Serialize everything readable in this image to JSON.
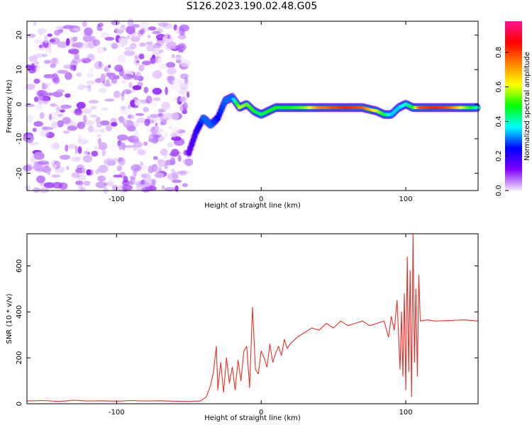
{
  "title": "S126.2023.190.02.48.G05",
  "chart_data": [
    {
      "type": "heatmap",
      "xlabel": "Height of straight line (km)",
      "ylabel": "Frequency (Hz)",
      "xlim": [
        -162,
        150
      ],
      "ylim": [
        -25,
        24
      ],
      "x_ticks": [
        -100,
        0,
        100
      ],
      "y_ticks": [
        20,
        10,
        0,
        -10,
        -20
      ],
      "colorbar": {
        "label": "Normalized spectral amplitude",
        "ticks": [
          "0.0",
          "0.2",
          "0.4",
          "0.6",
          "0.8"
        ],
        "colors": [
          "#f3e6ff",
          "#8000ff",
          "#0000ff",
          "#00ffff",
          "#00ff00",
          "#ffff00",
          "#ff8000",
          "#ff0000",
          "#ff1493"
        ]
      },
      "noise_region": {
        "x_range": [
          -162,
          -50
        ],
        "amplitude": [
          0.0,
          0.2
        ]
      },
      "ridge": {
        "x": [
          -50,
          -45,
          -40,
          -35,
          -30,
          -25,
          -20,
          -15,
          -10,
          -5,
          0,
          5,
          10,
          20,
          30,
          40,
          50,
          60,
          70,
          80,
          85,
          90,
          95,
          100,
          105,
          110,
          120,
          130,
          140,
          150
        ],
        "frequency": [
          -14,
          -8,
          -4,
          -6,
          -4,
          1,
          2,
          -1,
          0,
          -2,
          -3,
          -2,
          -1,
          -1,
          -1,
          -1,
          -1,
          -1,
          -1,
          -2,
          -3,
          -3,
          -1,
          0,
          -1,
          -1,
          -1,
          -1,
          -1,
          -1
        ],
        "amplitude": [
          0.15,
          0.2,
          0.3,
          0.3,
          0.25,
          0.3,
          0.3,
          0.6,
          0.55,
          0.5,
          0.45,
          0.5,
          0.5,
          0.5,
          0.55,
          0.75,
          0.8,
          0.85,
          0.8,
          0.6,
          0.5,
          0.35,
          0.35,
          0.4,
          0.5,
          0.8,
          0.85,
          0.8,
          0.6,
          0.4
        ]
      }
    },
    {
      "type": "line",
      "xlabel": "Height of straight line (km)",
      "ylabel": "SNR (10 * v/v)",
      "xlim": [
        -162,
        150
      ],
      "ylim": [
        0,
        740
      ],
      "x_ticks": [
        -100,
        0,
        100
      ],
      "y_ticks": [
        0,
        200,
        400,
        600
      ],
      "series": [
        {
          "color": "#e8302a",
          "x": [
            -162,
            -150,
            -140,
            -130,
            -120,
            -110,
            -100,
            -90,
            -80,
            -70,
            -60,
            -50,
            -42,
            -38,
            -35,
            -33,
            -31,
            -30,
            -28,
            -26,
            -24,
            -22,
            -20,
            -18,
            -16,
            -14,
            -12,
            -10,
            -8,
            -6,
            -4,
            -2,
            0,
            2,
            4,
            6,
            8,
            10,
            12,
            14,
            16,
            18,
            20,
            25,
            30,
            35,
            40,
            45,
            50,
            55,
            60,
            65,
            70,
            75,
            80,
            85,
            88,
            90,
            92,
            94,
            96,
            97,
            98,
            99,
            100,
            101,
            102,
            103,
            104,
            105,
            106,
            107,
            108,
            109,
            110,
            115,
            120,
            130,
            140,
            150
          ],
          "values": [
            12,
            14,
            10,
            15,
            12,
            13,
            11,
            14,
            12,
            13,
            11,
            10,
            12,
            30,
            80,
            140,
            250,
            60,
            180,
            50,
            200,
            90,
            160,
            60,
            190,
            100,
            230,
            250,
            70,
            420,
            150,
            130,
            230,
            200,
            160,
            260,
            180,
            220,
            250,
            210,
            280,
            240,
            260,
            290,
            310,
            330,
            320,
            350,
            330,
            360,
            340,
            350,
            360,
            340,
            350,
            360,
            290,
            380,
            320,
            450,
            150,
            400,
            120,
            480,
            60,
            640,
            140,
            580,
            30,
            740,
            180,
            500,
            120,
            560,
            360,
            365,
            360,
            362,
            365,
            360
          ]
        }
      ]
    }
  ]
}
